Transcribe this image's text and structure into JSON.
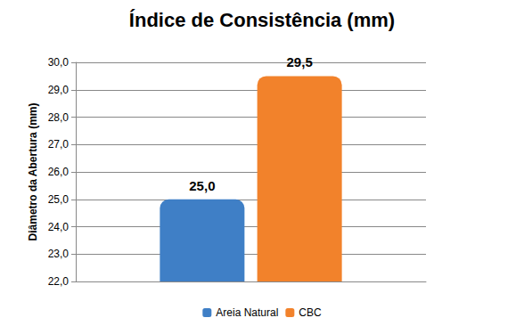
{
  "chart_data": {
    "type": "bar",
    "title": "Índice de Consistência (mm)",
    "y_label": "Diâmetro da Abertura (mm)",
    "categories": [
      null
    ],
    "series": [
      {
        "name": "Areia Natural",
        "color": "#3f7fc6",
        "values": [
          25.0
        ],
        "value_labels": [
          "25,0"
        ]
      },
      {
        "name": "CBC",
        "color": "#f2822b",
        "values": [
          29.5
        ],
        "value_labels": [
          "29,5"
        ]
      }
    ],
    "ylim": [
      22,
      30
    ],
    "yticks": [
      {
        "value": 22,
        "label": "22,0"
      },
      {
        "value": 23,
        "label": "23,0"
      },
      {
        "value": 24,
        "label": "24,0"
      },
      {
        "value": 25,
        "label": "25,0"
      },
      {
        "value": 26,
        "label": "26,0"
      },
      {
        "value": 27,
        "label": "27,0"
      },
      {
        "value": 28,
        "label": "28,0"
      },
      {
        "value": 29,
        "label": "29,0"
      },
      {
        "value": 30,
        "label": "30,0"
      }
    ],
    "grid": true,
    "legend": "bottom",
    "data_labels": true,
    "tick_labels": "y"
  }
}
